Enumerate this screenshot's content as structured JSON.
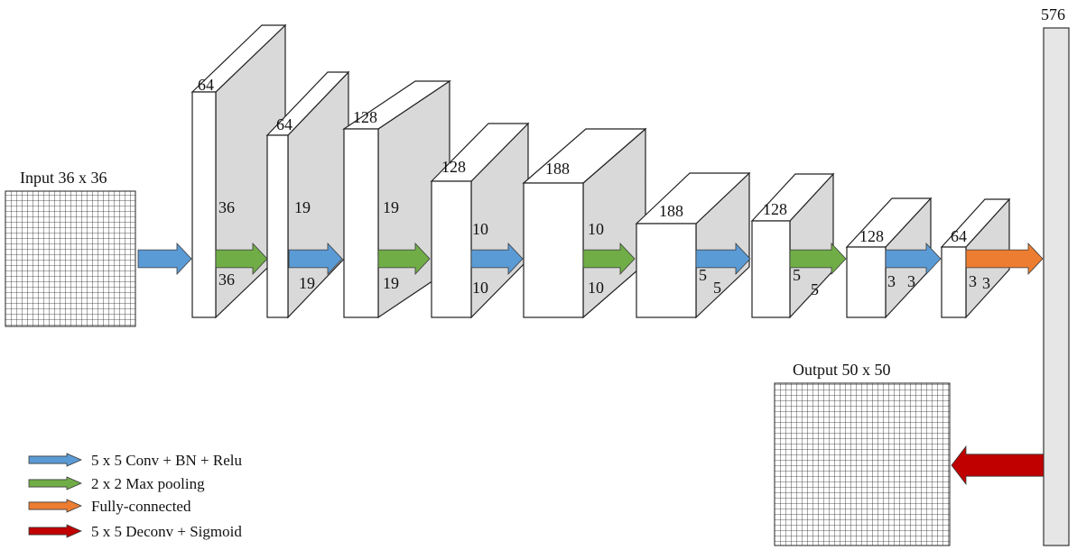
{
  "input": {
    "label": "Input 36 x 36"
  },
  "output": {
    "label": "Output 50 x 50"
  },
  "fc_layer": {
    "size": "576"
  },
  "blocks": [
    {
      "channels": "64",
      "side": "36",
      "bottom": "36"
    },
    {
      "channels": "64",
      "side": "19",
      "bottom": "19"
    },
    {
      "channels": "128",
      "side": "19",
      "bottom": "19"
    },
    {
      "channels": "128",
      "side": "10",
      "bottom": "10"
    },
    {
      "channels": "188",
      "side": "10",
      "bottom": "10"
    },
    {
      "channels": "188",
      "side": "5",
      "bottom": "5"
    },
    {
      "channels": "128",
      "side": "5",
      "bottom": "5"
    },
    {
      "channels": "128",
      "side": "3",
      "bottom": "3"
    },
    {
      "channels": "64",
      "side": "3",
      "bottom": "3"
    }
  ],
  "colors": {
    "conv": "#5b9bd5",
    "pool": "#70ad47",
    "fc": "#ed7d31",
    "deconv": "#c00000",
    "side_face": "#d9d9d9",
    "fc_bar": "#e6e6e6"
  },
  "legend": [
    {
      "kind": "conv",
      "label": "5 x 5 Conv + BN + Relu"
    },
    {
      "kind": "pool",
      "label": "2 x 2 Max pooling"
    },
    {
      "kind": "fc",
      "label": "Fully-connected"
    },
    {
      "kind": "deconv",
      "label": "5 x 5 Deconv + Sigmoid"
    }
  ]
}
